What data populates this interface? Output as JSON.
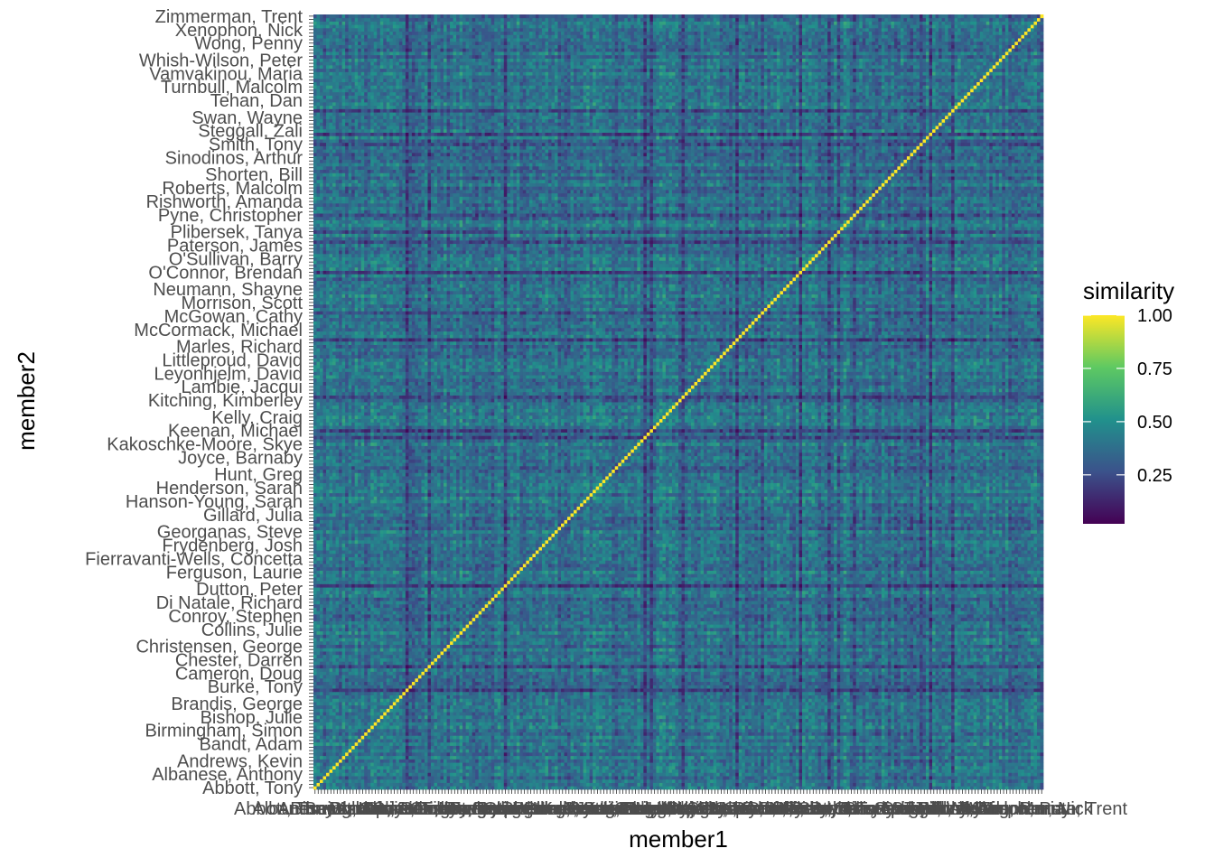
{
  "chart_data": {
    "type": "heatmap",
    "xlabel": "member1",
    "ylabel": "member2",
    "legend": {
      "title": "similarity",
      "placement": "right",
      "ticks": [
        0.25,
        0.5,
        0.75,
        1.0
      ],
      "tick_labels": [
        "0.25",
        "0.50",
        "0.75",
        "1.00"
      ],
      "range": [
        0.0,
        1.0
      ],
      "palette": [
        "#440154",
        "#3b528b",
        "#21918c",
        "#5ec962",
        "#fde725"
      ]
    },
    "members_visible": [
      "Abbott, Tony",
      "Albanese, Anthony",
      "Andrews, Kevin",
      "Bandt, Adam",
      "Birmingham, Simon",
      "Bishop, Julie",
      "Brandis, George",
      "Burke, Tony",
      "Cameron, Doug",
      "Chester, Darren",
      "Christensen, George",
      "Collins, Julie",
      "Conroy, Stephen",
      "Di Natale, Richard",
      "Dutton, Peter",
      "Ferguson, Laurie",
      "Fierravanti-Wells, Concetta",
      "Frydenberg, Josh",
      "Georganas, Steve",
      "Gillard, Julia",
      "Hanson-Young, Sarah",
      "Henderson, Sarah",
      "Hunt, Greg",
      "Joyce, Barnaby",
      "Kakoschke-Moore, Skye",
      "Keenan, Michael",
      "Kelly, Craig",
      "Kitching, Kimberley",
      "Lambie, Jacqui",
      "Leyonhjelm, David",
      "Littleproud, David",
      "Marles, Richard",
      "McCormack, Michael",
      "McGowan, Cathy",
      "Morrison, Scott",
      "Neumann, Shayne",
      "O'Connor, Brendan",
      "O'Sullivan, Barry",
      "Paterson, James",
      "Plibersek, Tanya",
      "Pyne, Christopher",
      "Rishworth, Amanda",
      "Roberts, Malcolm",
      "Shorten, Bill",
      "Sinodinos, Arthur",
      "Smith, Tony",
      "Steggall, Zali",
      "Swan, Wayne",
      "Tehan, Dan",
      "Turnbull, Malcolm",
      "Vamvakinou, Maria",
      "Whish-Wilson, Peter",
      "Wong, Penny",
      "Xenophon, Nick",
      "Zimmerman, Trent"
    ],
    "x_first_label": "Abbott, Tony",
    "x_last_label": "Zimmerman, Trent",
    "n_members": 230,
    "diagonal_value": 1.0,
    "off_diagonal_typical_range": [
      0.05,
      0.75
    ],
    "grid": false
  }
}
